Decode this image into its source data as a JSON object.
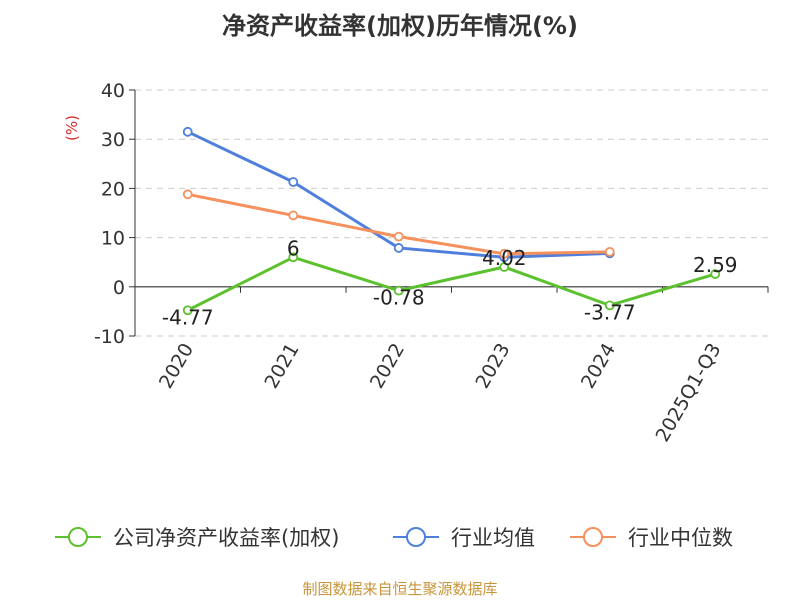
{
  "chart_data": {
    "type": "line",
    "title": "净资产收益率(加权)历年情况(%)",
    "ylabel": "(%)",
    "categories": [
      "2020",
      "2021",
      "2022",
      "2023",
      "2024",
      "2025Q1-Q3"
    ],
    "ylim": [
      -10,
      40
    ],
    "yticks": [
      -10,
      0,
      10,
      20,
      30,
      40
    ],
    "grid": true,
    "legend_position": "bottom",
    "series": [
      {
        "name": "公司净资产收益率(加权)",
        "color": "#5cc12e",
        "values": [
          -4.77,
          6,
          -0.78,
          4.02,
          -3.77,
          2.59
        ],
        "labels": [
          "-4.77",
          "6",
          "-0.78",
          "4.02",
          "-3.77",
          "2.59"
        ]
      },
      {
        "name": "行业均值",
        "color": "#4f7fdb",
        "values": [
          31.5,
          21.3,
          7.9,
          6.0,
          6.8,
          null
        ]
      },
      {
        "name": "行业中位数",
        "color": "#f6905c",
        "values": [
          18.8,
          14.5,
          10.2,
          6.7,
          7.1,
          null
        ]
      }
    ]
  },
  "source": "制图数据来自恒生聚源数据库"
}
